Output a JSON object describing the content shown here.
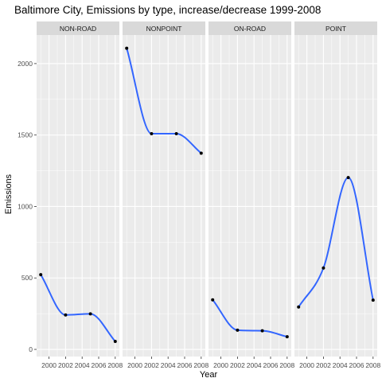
{
  "chart_data": {
    "type": "line",
    "title": "Baltimore City, Emissions by type, increase/decrease 1999-2008",
    "xlabel": "Year",
    "ylabel": "Emissions",
    "x": [
      1999,
      2002,
      2005,
      2008
    ],
    "x_ticks": [
      2000,
      2002,
      2004,
      2006,
      2008
    ],
    "x_tick_labels": [
      "2000",
      "2002",
      "2004",
      "2006",
      "2008"
    ],
    "xlim": [
      1998.5,
      2008.5
    ],
    "y_ticks": [
      0,
      500,
      1000,
      1500,
      2000
    ],
    "y_tick_labels": [
      "0",
      "500",
      "1000",
      "1500",
      "2000"
    ],
    "ylim": [
      -50,
      2200
    ],
    "grid": true,
    "panel_background": "#ebebeb",
    "strip_background": "#d9d9d9",
    "line_color": "#3366ff",
    "point_color": "#000000",
    "facets": [
      {
        "label": "NON-ROAD",
        "values": [
          522.9,
          240.8,
          248.9,
          55.8
        ]
      },
      {
        "label": "NONPOINT",
        "values": [
          2107.6,
          1509.5,
          1509.5,
          1373.2
        ]
      },
      {
        "label": "ON-ROAD",
        "values": [
          346.8,
          134.3,
          130.4,
          88.3
        ]
      },
      {
        "label": "POINT",
        "values": [
          296.8,
          569.3,
          1202.5,
          344.98
        ]
      }
    ]
  }
}
